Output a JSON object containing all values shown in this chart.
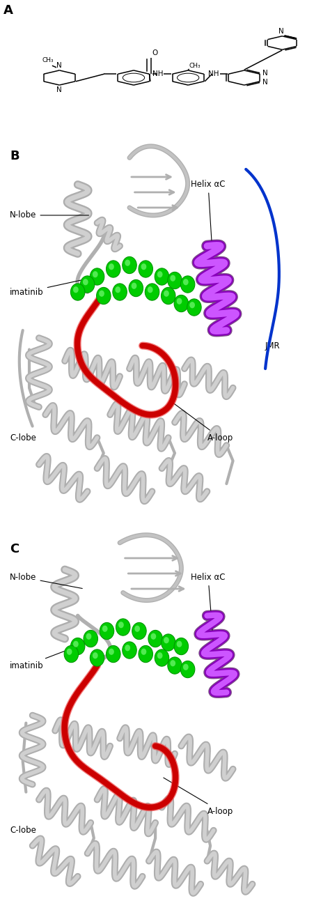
{
  "panel_labels": [
    "A",
    "B",
    "C"
  ],
  "panel_label_fontsize": 13,
  "panel_label_fontweight": "bold",
  "background_color": "#ffffff",
  "text_color": "#000000",
  "annotation_fontsize": 8.5,
  "structure_color_gray_light": "#d0d0d0",
  "structure_color_gray_mid": "#b0b0b0",
  "structure_color_gray_dark": "#888888",
  "structure_color_red": "#cc0000",
  "structure_color_red_light": "#ee4444",
  "structure_color_green": "#00cc00",
  "structure_color_green_dark": "#009900",
  "structure_color_green_light": "#88ff88",
  "structure_color_purple": "#8800bb",
  "structure_color_purple_light": "#cc55ff",
  "structure_color_blue": "#0033cc",
  "fig_width": 4.74,
  "fig_height": 13.26
}
